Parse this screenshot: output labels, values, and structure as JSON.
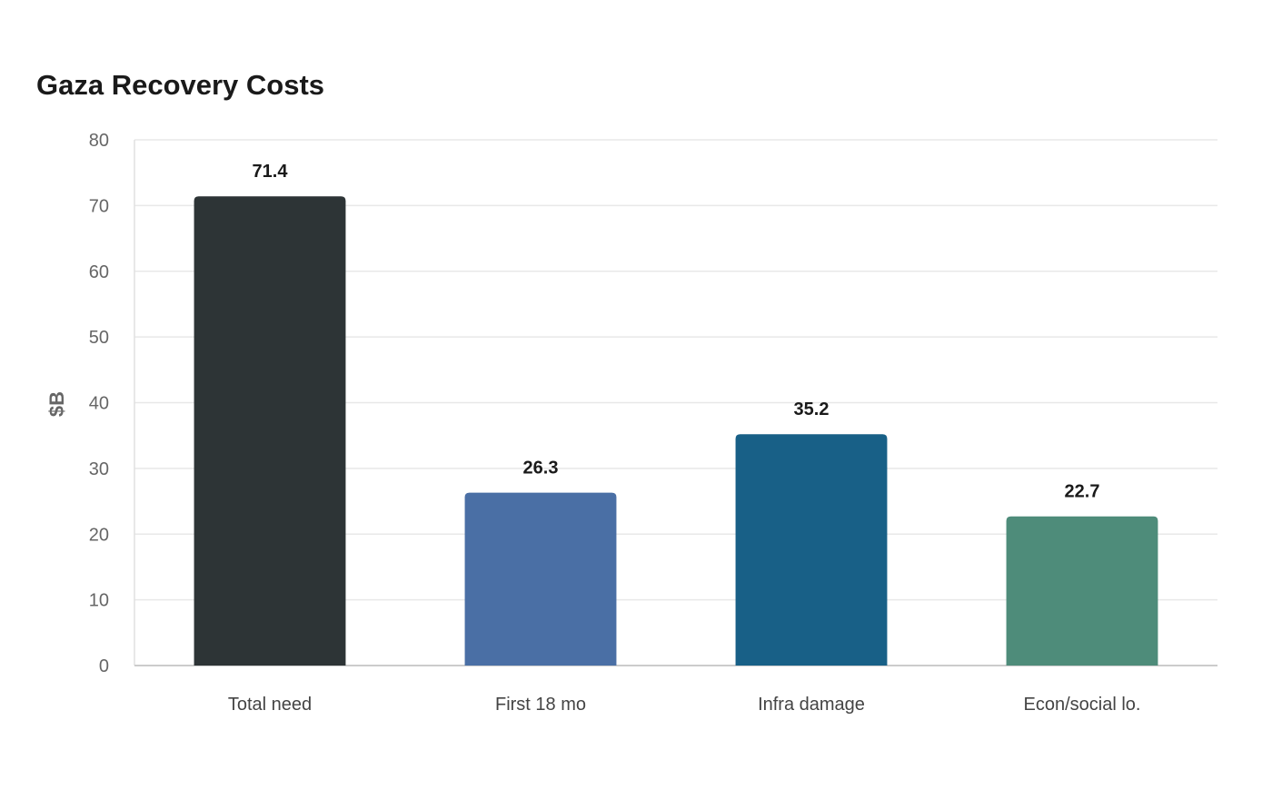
{
  "chart_data": {
    "type": "bar",
    "title": "Gaza Recovery Costs",
    "xlabel": "",
    "ylabel": "$B",
    "categories": [
      "Total need",
      "First 18 mo",
      "Infra damage",
      "Econ/social lo."
    ],
    "values": [
      71.4,
      26.3,
      35.2,
      22.7
    ],
    "value_labels": [
      "71.4",
      "26.3",
      "35.2",
      "22.7"
    ],
    "colors": [
      "#2d3436",
      "#4a6fa5",
      "#186087",
      "#4e8c7a"
    ],
    "ylim": [
      0,
      80
    ],
    "yticks": [
      0,
      10,
      20,
      30,
      40,
      50,
      60,
      70,
      80
    ],
    "grid": true,
    "legend": "none"
  }
}
